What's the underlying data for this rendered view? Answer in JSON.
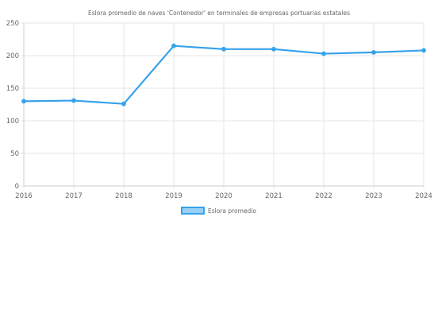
{
  "chart_data": {
    "type": "line",
    "title": "Eslora promedio de naves 'Contenedor' en terminales de empresas portuarias estatales",
    "xlabel": "",
    "ylabel": "",
    "categories": [
      "2016",
      "2017",
      "2018",
      "2019",
      "2020",
      "2021",
      "2022",
      "2023",
      "2024"
    ],
    "series": [
      {
        "name": "Eslora promedio",
        "values": [
          130,
          131,
          126,
          215,
          210,
          210,
          203,
          205,
          208
        ],
        "color": "#36a2eb",
        "fill": "#9ad0f5"
      }
    ],
    "ylim": [
      0,
      250
    ],
    "yticks": [
      0,
      50,
      100,
      150,
      200,
      250
    ],
    "grid": true,
    "legend_position": "bottom"
  }
}
